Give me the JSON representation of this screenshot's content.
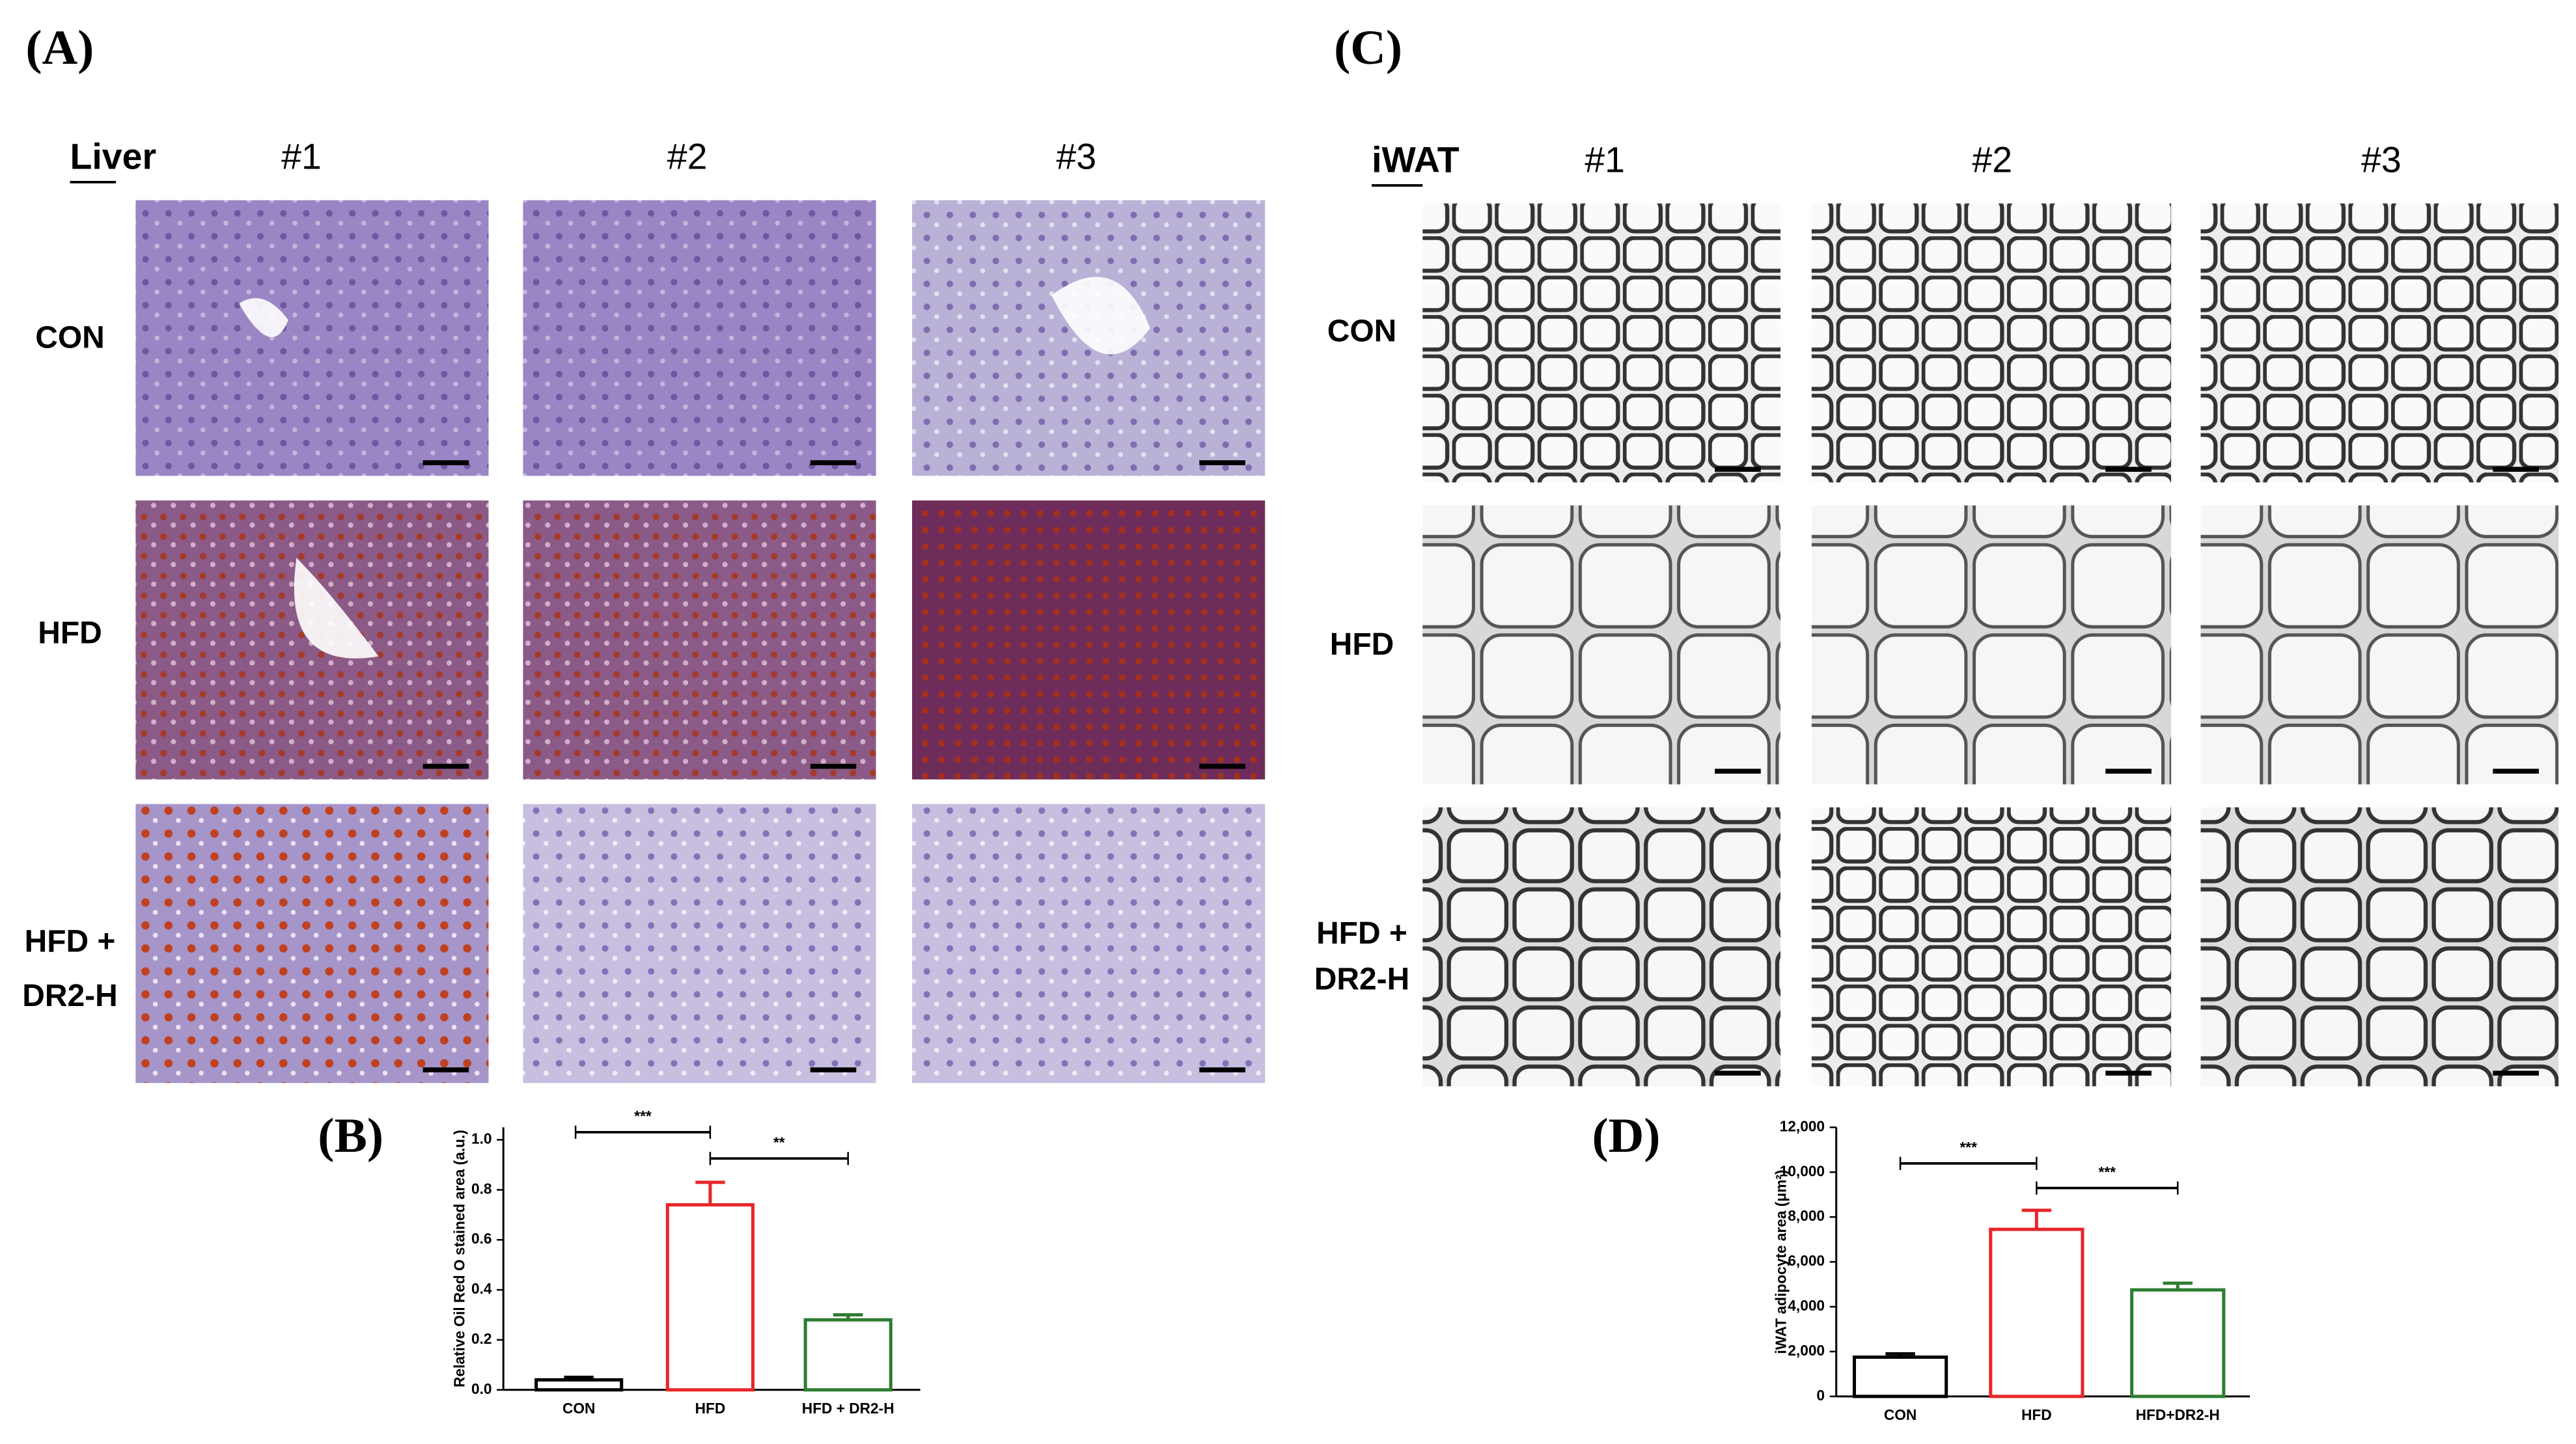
{
  "panels": [
    {
      "label": "(A)",
      "tissue": "Liver",
      "columns": [
        "#1",
        "#2",
        "#3"
      ],
      "rows": [
        [
          "CON"
        ],
        [
          "HFD"
        ],
        [
          "HFD +",
          "DR2-H"
        ]
      ]
    },
    {
      "label": "(C)",
      "tissue": "iWAT",
      "columns": [
        "#1",
        "#2",
        "#3"
      ],
      "rows": [
        [
          "CON"
        ],
        [
          "HFD"
        ],
        [
          "HFD +",
          "DR2-H"
        ]
      ]
    }
  ],
  "chart_data": [
    {
      "type": "bar",
      "panel_label": "(B)",
      "y_label": "Relative Oil Red O stained area (a.u.)",
      "categories": [
        "CON",
        "HFD",
        "HFD + DR2-H"
      ],
      "values": [
        0.04,
        0.74,
        0.28
      ],
      "errors": [
        0.01,
        0.09,
        0.02
      ],
      "colors": [
        "#000000",
        "#e8262a",
        "#2e7d32"
      ],
      "ylim": [
        0,
        1.05
      ],
      "yticks": [
        {
          "value": 0,
          "label": "0.0"
        },
        0.2,
        0.4,
        0.6,
        0.8,
        {
          "value": 1,
          "label": "1.0"
        }
      ],
      "annotations": [
        "***",
        "**"
      ]
    },
    {
      "type": "bar",
      "panel_label": "(D)",
      "y_label": "iWAT adipocyte area (μm²)",
      "categories": [
        "CON",
        "HFD",
        "HFD+DR2-H"
      ],
      "values": [
        1750,
        7450,
        4750
      ],
      "errors": [
        150,
        850,
        300
      ],
      "colors": [
        "#000000",
        "#e8262a",
        "#2e7d32"
      ],
      "ylim": [
        0,
        12000
      ],
      "yticks": [
        0,
        {
          "value": 2000,
          "label": "2,000"
        },
        {
          "value": 4000,
          "label": "4,000"
        },
        {
          "value": 6000,
          "label": "6,000"
        },
        {
          "value": 8000,
          "label": "8,000"
        },
        {
          "value": 10000,
          "label": "10,000"
        },
        {
          "value": 12000,
          "label": "12,000"
        }
      ],
      "annotations": [
        "***",
        "***"
      ]
    }
  ]
}
